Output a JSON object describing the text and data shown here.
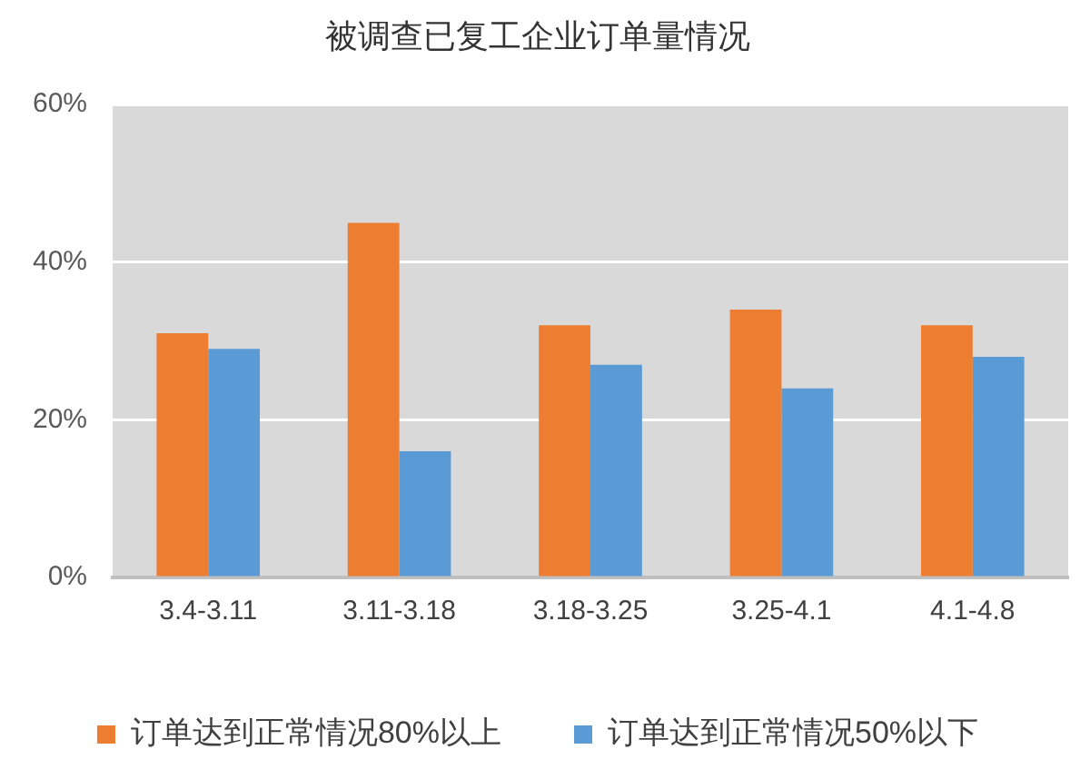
{
  "chart_data": {
    "type": "bar",
    "title": "被调查已复工企业订单量情况",
    "categories": [
      "3.4-3.11",
      "3.11-3.18",
      "3.18-3.25",
      "3.25-4.1",
      "4.1-4.8"
    ],
    "series": [
      {
        "name": "订单达到正常情况80%以上",
        "color": "#ed7d31",
        "values": [
          31,
          45,
          32,
          34,
          32
        ]
      },
      {
        "name": "订单达到正常情况50%以下",
        "color": "#5b9bd5",
        "values": [
          29,
          16,
          27,
          24,
          28
        ]
      }
    ],
    "ylim": [
      0,
      60
    ],
    "yticks": [
      {
        "value": 0,
        "label": "0%"
      },
      {
        "value": 20,
        "label": "20%"
      },
      {
        "value": 40,
        "label": "40%"
      },
      {
        "value": 60,
        "label": "60%"
      }
    ],
    "grid": "y",
    "legend": "bottom"
  }
}
